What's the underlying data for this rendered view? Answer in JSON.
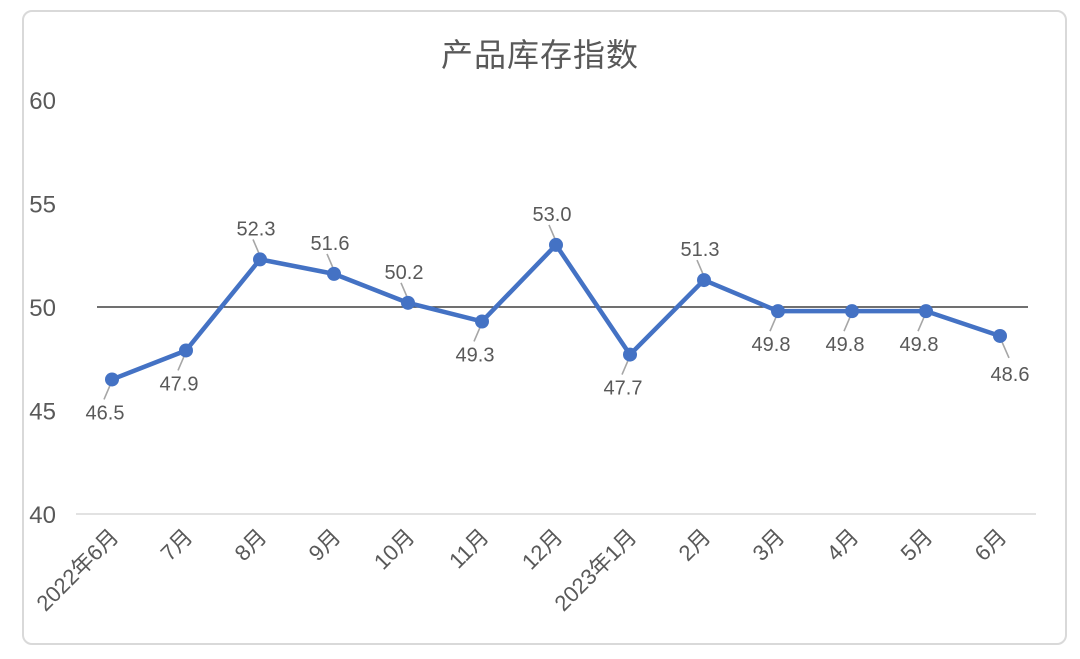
{
  "chart_data": {
    "type": "line",
    "title": "产品库存指数",
    "categories": [
      "2022年6月",
      "7月",
      "8月",
      "9月",
      "10月",
      "11月",
      "12月",
      "2023年1月",
      "2月",
      "3月",
      "4月",
      "5月",
      "6月"
    ],
    "series": [
      {
        "name": "产品库存指数",
        "values": [
          46.5,
          47.9,
          52.3,
          51.6,
          50.2,
          49.3,
          53.0,
          47.7,
          51.3,
          49.8,
          49.8,
          49.8,
          48.6
        ]
      }
    ],
    "data_labels_shown": true,
    "data_label_format": "one-decimal",
    "label_positions": [
      "below",
      "below",
      "above",
      "above",
      "above",
      "below",
      "above",
      "below",
      "above",
      "below",
      "below",
      "below",
      "below-right"
    ],
    "xlabel": "",
    "ylabel": "",
    "ylim": [
      40,
      60
    ],
    "y_ticks": [
      40,
      45,
      50,
      55,
      60
    ],
    "reference_line_y": 50,
    "grid": "off",
    "legend": "none",
    "x_label_rotation_deg": 45,
    "colors": {
      "series_line": "#4472C4",
      "marker_fill": "#4472C4",
      "title_text": "#595959",
      "axis_text": "#595959",
      "data_label_text": "#595959",
      "axis_line": "#D9D9D9",
      "reference_line": "#404040",
      "leader_line": "#A6A6A6",
      "frame_border": "#D9D9D9",
      "background": "#FFFFFF"
    }
  }
}
